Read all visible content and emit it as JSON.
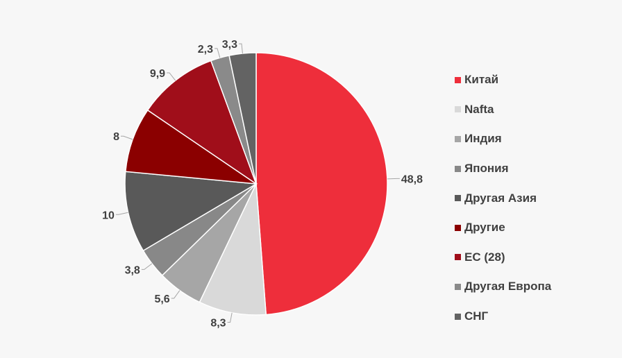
{
  "chart_data": {
    "type": "pie",
    "title": "",
    "start": "top",
    "direction": "clockwise",
    "legend_position": "right",
    "categories": [
      "Китай",
      "Nafta",
      "Индия",
      "Япония",
      "Другая Азия",
      "Другие",
      "ЕС (28)",
      "Другая Европа",
      "СНГ"
    ],
    "values": [
      48.8,
      8.3,
      5.6,
      3.8,
      10,
      8,
      9.9,
      2.3,
      3.3
    ],
    "labels": [
      "48,8",
      "8,3",
      "5,6",
      "3,8",
      "10",
      "8",
      "9,9",
      "2,3",
      "3,3"
    ],
    "colors": [
      "#ee2e3b",
      "#d9d9d9",
      "#a6a6a6",
      "#888888",
      "#595959",
      "#8b0000",
      "#a00e1a",
      "#8a8a8a",
      "#636363"
    ]
  }
}
